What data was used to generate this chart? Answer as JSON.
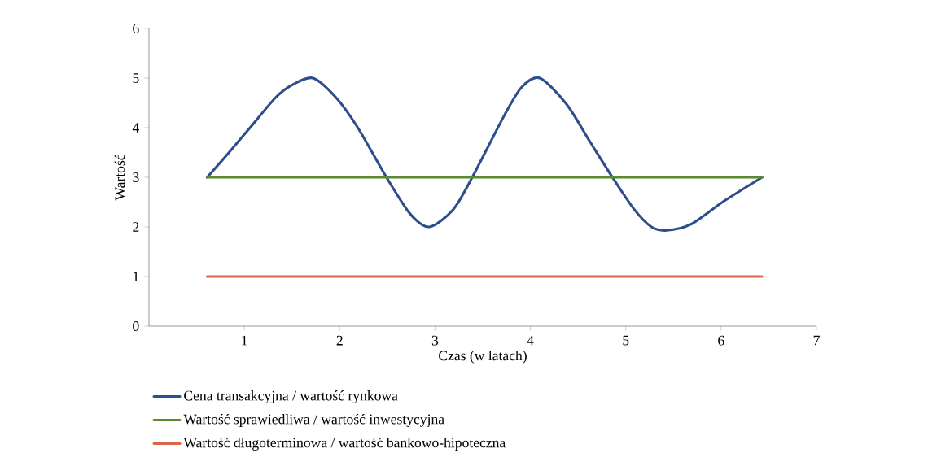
{
  "chart_data": {
    "type": "line",
    "xlabel": "Czas (w latach)",
    "ylabel": "Wartość",
    "xlim": [
      0,
      7
    ],
    "ylim": [
      0,
      6
    ],
    "xticks": [
      1,
      2,
      3,
      4,
      5,
      6,
      7
    ],
    "yticks": [
      0,
      1,
      2,
      3,
      4,
      5,
      6
    ],
    "grid": false,
    "legend": "bottom",
    "marker": "none",
    "line_style": "solid",
    "series": [
      {
        "name": "Cena transakcyjna / wartość rynkowa",
        "color": "#2e4d8c",
        "x": [
          0.61,
          0.83,
          1.06,
          1.33,
          1.51,
          1.72,
          1.96,
          2.19,
          2.49,
          2.74,
          2.94,
          3.19,
          3.39,
          3.73,
          3.91,
          4.1,
          4.38,
          4.63,
          4.86,
          5.09,
          5.27,
          5.43,
          5.68,
          6.03,
          6.43
        ],
        "values": [
          3,
          3.48,
          4.0,
          4.61,
          4.87,
          5.0,
          4.61,
          4.0,
          3,
          2.26,
          2.0,
          2.35,
          3,
          4.26,
          4.82,
          5.0,
          4.47,
          3.7,
          3,
          2.35,
          2.0,
          1.93,
          2.05,
          2.52,
          3
        ]
      },
      {
        "name": "Wartość sprawiedliwa / wartość inwestycyjna",
        "color": "#5a8a32",
        "x": [
          0.61,
          6.43
        ],
        "values": [
          3,
          3
        ]
      },
      {
        "name": "Wartość długoterminowa / wartość bankowo-hipoteczna",
        "color": "#d9684a",
        "x": [
          0.61,
          6.43
        ],
        "values": [
          1,
          1
        ]
      }
    ]
  }
}
